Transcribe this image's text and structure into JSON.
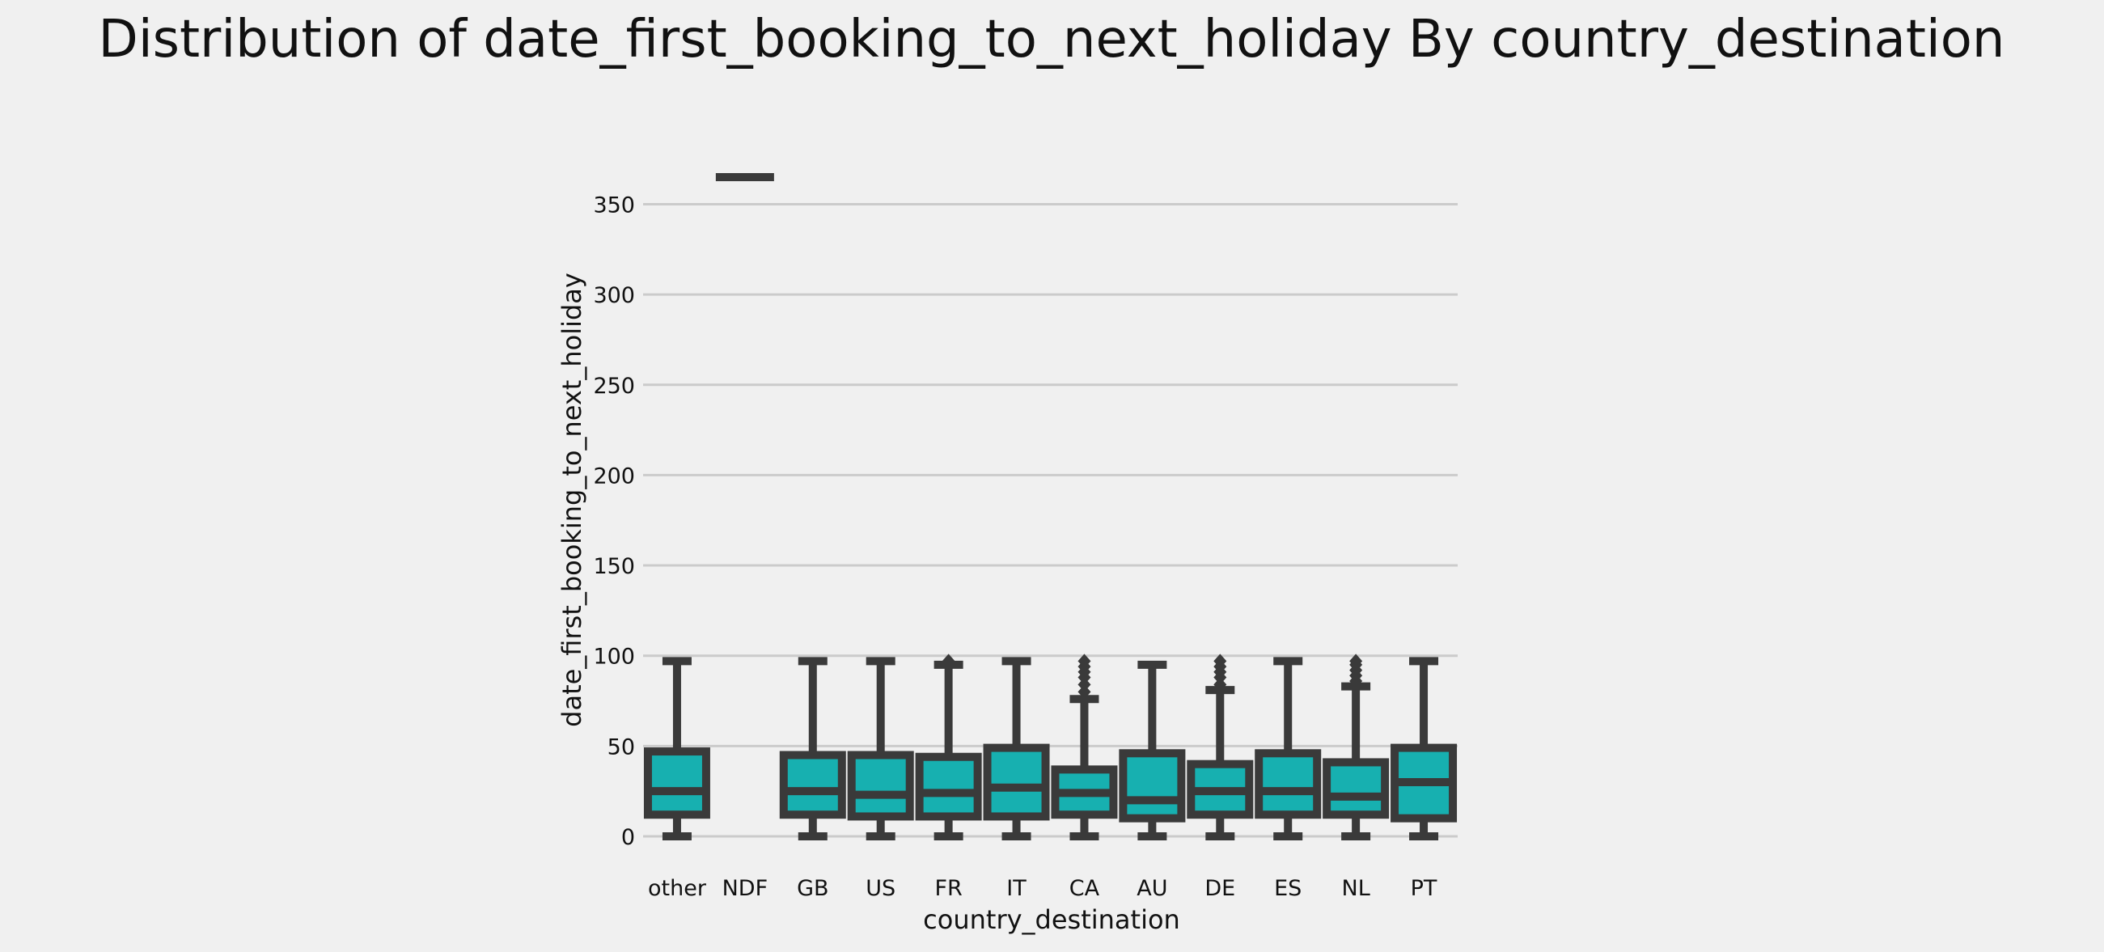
{
  "chart_data": {
    "type": "box",
    "title": "Distribution of date_first_booking_to_next_holiday By country_destination",
    "xlabel": "country_destination",
    "ylabel": "date_first_booking_to_next_holiday",
    "ylim": [
      -10,
      380
    ],
    "yticks": [
      0,
      50,
      100,
      150,
      200,
      250,
      300,
      350
    ],
    "grid": "horizontal",
    "colors": {
      "box": "#17b0b0",
      "line": "#3a3a3a",
      "background": "#f0f0f0",
      "grid": "#cbcbcb"
    },
    "categories": [
      "other",
      "NDF",
      "GB",
      "US",
      "FR",
      "IT",
      "CA",
      "AU",
      "DE",
      "ES",
      "NL",
      "PT"
    ],
    "boxes": [
      {
        "category": "other",
        "min": 0,
        "q1": 12,
        "median": 25,
        "q3": 47,
        "max": 97,
        "outliers": []
      },
      {
        "category": "NDF",
        "min": 365,
        "q1": 365,
        "median": 365,
        "q3": 365,
        "max": 365,
        "outliers": []
      },
      {
        "category": "GB",
        "min": 0,
        "q1": 12,
        "median": 25,
        "q3": 45,
        "max": 97,
        "outliers": []
      },
      {
        "category": "US",
        "min": 0,
        "q1": 11,
        "median": 23,
        "q3": 45,
        "max": 97,
        "outliers": []
      },
      {
        "category": "FR",
        "min": 0,
        "q1": 11,
        "median": 24,
        "q3": 44,
        "max": 95,
        "outliers": [
          97
        ]
      },
      {
        "category": "IT",
        "min": 0,
        "q1": 11,
        "median": 27,
        "q3": 49,
        "max": 97,
        "outliers": []
      },
      {
        "category": "CA",
        "min": 0,
        "q1": 12,
        "median": 24,
        "q3": 37,
        "max": 76,
        "outliers": [
          80,
          84,
          88,
          91,
          94,
          97
        ]
      },
      {
        "category": "AU",
        "min": 0,
        "q1": 10,
        "median": 20,
        "q3": 46,
        "max": 95,
        "outliers": []
      },
      {
        "category": "DE",
        "min": 0,
        "q1": 12,
        "median": 25,
        "q3": 40,
        "max": 81,
        "outliers": [
          84,
          88,
          91,
          94,
          97
        ]
      },
      {
        "category": "ES",
        "min": 0,
        "q1": 12,
        "median": 25,
        "q3": 46,
        "max": 97,
        "outliers": []
      },
      {
        "category": "NL",
        "min": 0,
        "q1": 12,
        "median": 22,
        "q3": 41,
        "max": 83,
        "outliers": [
          86,
          89,
          92,
          95,
          97
        ]
      },
      {
        "category": "PT",
        "min": 0,
        "q1": 10,
        "median": 30,
        "q3": 49,
        "max": 97,
        "outliers": []
      }
    ]
  }
}
